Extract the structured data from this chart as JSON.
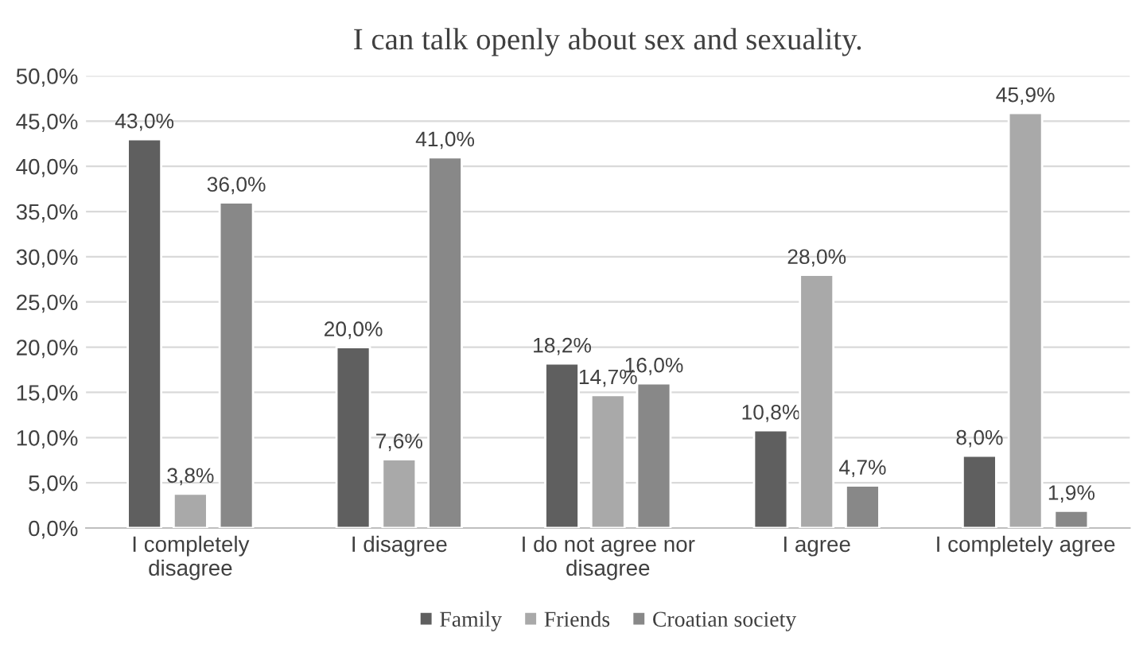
{
  "chart_data": {
    "type": "bar",
    "title": "I can talk openly about sex and sexuality.",
    "categories": [
      "I completely\ndisagree",
      "I disagree",
      "I do not agree nor\ndisagree",
      "I agree",
      "I completely agree"
    ],
    "series": [
      {
        "name": "Family",
        "color": "#5f5f5f",
        "values": [
          43.0,
          20.0,
          18.2,
          10.8,
          8.0
        ],
        "value_labels": [
          "43,0%",
          "20,0%",
          "18,2%",
          "10,8%",
          "8,0%"
        ]
      },
      {
        "name": "Friends",
        "color": "#a9a9a9",
        "values": [
          3.8,
          7.6,
          14.7,
          28.0,
          45.9
        ],
        "value_labels": [
          "3,8%",
          "7,6%",
          "14,7%",
          "28,0%",
          "45,9%"
        ]
      },
      {
        "name": "Croatian society",
        "color": "#888888",
        "values": [
          36.0,
          41.0,
          16.0,
          4.7,
          1.9
        ],
        "value_labels": [
          "36,0%",
          "41,0%",
          "16,0%",
          "4,7%",
          "1,9%"
        ]
      }
    ],
    "ylim": [
      0,
      50
    ],
    "yticks": [
      {
        "value": 0,
        "label": "0,0%"
      },
      {
        "value": 5,
        "label": "5,0%"
      },
      {
        "value": 10,
        "label": "10,0%"
      },
      {
        "value": 15,
        "label": "15,0%"
      },
      {
        "value": 20,
        "label": "20,0%"
      },
      {
        "value": 25,
        "label": "25,0%"
      },
      {
        "value": 30,
        "label": "30,0%"
      },
      {
        "value": 35,
        "label": "35,0%"
      },
      {
        "value": 40,
        "label": "40,0%"
      },
      {
        "value": 45,
        "label": "45,0%"
      },
      {
        "value": 50,
        "label": "50,0%"
      }
    ],
    "grid": "y",
    "legend": "bottom"
  }
}
